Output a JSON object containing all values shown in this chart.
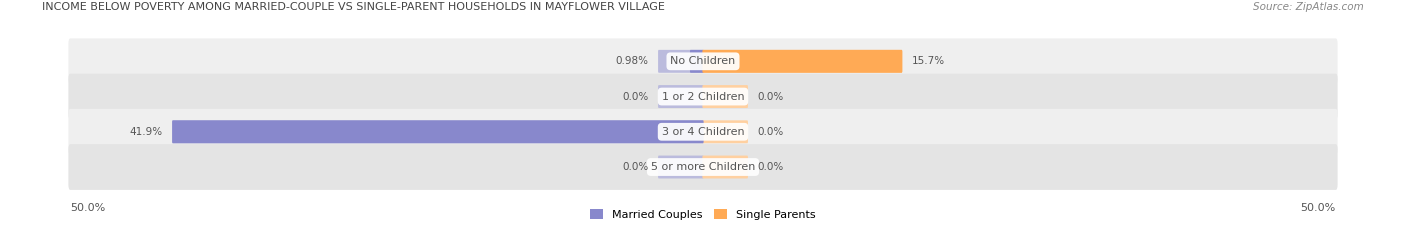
{
  "title": "INCOME BELOW POVERTY AMONG MARRIED-COUPLE VS SINGLE-PARENT HOUSEHOLDS IN MAYFLOWER VILLAGE",
  "source": "Source: ZipAtlas.com",
  "categories": [
    "No Children",
    "1 or 2 Children",
    "3 or 4 Children",
    "5 or more Children"
  ],
  "married_values": [
    0.98,
    0.0,
    41.9,
    0.0
  ],
  "single_values": [
    15.7,
    0.0,
    0.0,
    0.0
  ],
  "xlim": 50.0,
  "married_color": "#8888cc",
  "married_stub_color": "#bbbbdd",
  "single_color": "#ffaa55",
  "single_stub_color": "#ffd0a0",
  "row_bg_color_odd": "#efefef",
  "row_bg_color_even": "#e4e4e4",
  "label_color": "#555555",
  "title_color": "#444444",
  "source_color": "#888888",
  "married_label": "Married Couples",
  "single_label": "Single Parents",
  "min_stub": 3.5,
  "figsize": [
    14.06,
    2.33
  ],
  "dpi": 100
}
